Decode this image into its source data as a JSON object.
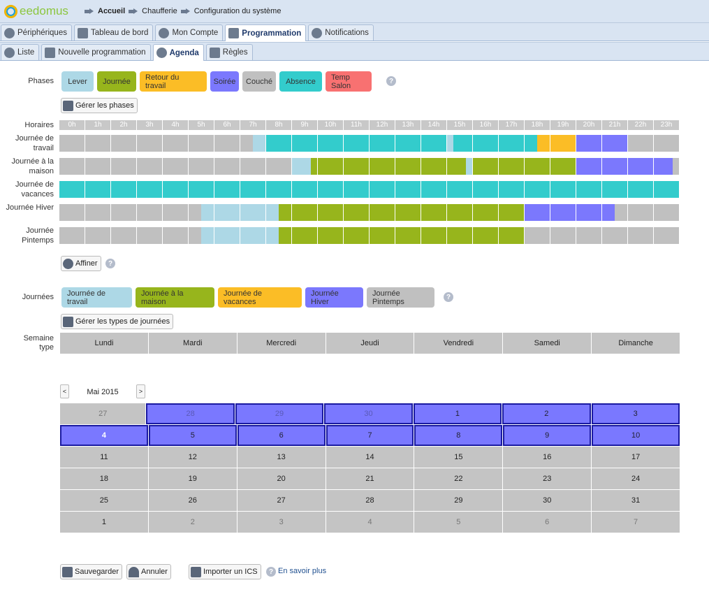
{
  "brand": "eedomus",
  "breadcrumb": [
    "Accueil",
    "Chaufferie",
    "Configuration du système"
  ],
  "main_tabs": [
    {
      "label": "Périphériques",
      "icon": "cube-icon"
    },
    {
      "label": "Tableau de bord",
      "icon": "gauge-icon"
    },
    {
      "label": "Mon Compte",
      "icon": "user-icon"
    },
    {
      "label": "Programmation",
      "icon": "magic-wand-icon",
      "active": true
    },
    {
      "label": "Notifications",
      "icon": "envelope-icon"
    }
  ],
  "sub_tabs": [
    {
      "label": "Liste",
      "icon": "magic-wand-icon"
    },
    {
      "label": "Nouvelle programmation",
      "icon": "plus-circle-icon"
    },
    {
      "label": "Agenda",
      "icon": "cube-icon",
      "active": true
    },
    {
      "label": "Règles",
      "icon": "hierarchy-icon"
    }
  ],
  "phases": {
    "label": "Phases",
    "manage_label": "Gérer les phases",
    "items": [
      {
        "name": "Lever",
        "color": "#add8e6"
      },
      {
        "name": "Journée",
        "color": "#97b51c"
      },
      {
        "name": "Retour du travail",
        "color": "#fbbd26"
      },
      {
        "name": "Soirée",
        "color": "#7b78fd"
      },
      {
        "name": "Couché",
        "color": "#c0c0c0"
      },
      {
        "name": "Absence",
        "color": "#33cccc"
      },
      {
        "name": "Temp Salon",
        "color": "#f87171"
      }
    ]
  },
  "schedule": {
    "hours_label": "Horaires",
    "hours": [
      "0h",
      "1h",
      "2h",
      "3h",
      "4h",
      "5h",
      "6h",
      "7h",
      "8h",
      "9h",
      "10h",
      "11h",
      "12h",
      "13h",
      "14h",
      "15h",
      "16h",
      "17h",
      "18h",
      "19h",
      "20h",
      "21h",
      "22h",
      "23h"
    ],
    "refine_label": "Affiner",
    "rows": [
      {
        "label": "Journée de travail",
        "segments": [
          [
            "Couché",
            0,
            7.5
          ],
          [
            "Lever",
            7.5,
            8
          ],
          [
            "Absence",
            8,
            15
          ],
          [
            "Lever",
            15,
            15.25
          ],
          [
            "Absence",
            15.25,
            18.5
          ],
          [
            "Retour du travail",
            18.5,
            20
          ],
          [
            "Soirée",
            20,
            22
          ],
          [
            "Couché",
            22,
            24
          ]
        ]
      },
      {
        "label": "Journée à la maison",
        "segments": [
          [
            "Couché",
            0,
            9
          ],
          [
            "Lever",
            9,
            9.75
          ],
          [
            "Journée",
            9.75,
            15.75
          ],
          [
            "Lever",
            15.75,
            16
          ],
          [
            "Journée",
            16,
            20
          ],
          [
            "Soirée",
            20,
            23.75
          ],
          [
            "Couché",
            23.75,
            24
          ]
        ]
      },
      {
        "label": "Journée de vacances",
        "segments": [
          [
            "Absence",
            0,
            24
          ]
        ]
      },
      {
        "label": "Journée Hiver",
        "segments": [
          [
            "Couché",
            0,
            5.5
          ],
          [
            "Lever",
            5.5,
            8.5
          ],
          [
            "Journée",
            8.5,
            18
          ],
          [
            "Soirée",
            18,
            21.5
          ],
          [
            "Couché",
            21.5,
            24
          ]
        ]
      },
      {
        "label": "Journée Pintemps",
        "segments": [
          [
            "Couché",
            0,
            5.5
          ],
          [
            "Lever",
            5.5,
            8.5
          ],
          [
            "Journée",
            8.5,
            18
          ],
          [
            "Couché",
            18,
            24
          ]
        ]
      }
    ]
  },
  "day_types": {
    "label": "Journées",
    "manage_label": "Gérer les types de journées",
    "items": [
      {
        "name": "Journée de travail",
        "color": "#add8e6"
      },
      {
        "name": "Journée à la maison",
        "color": "#97b51c"
      },
      {
        "name": "Journée de vacances",
        "color": "#fbbd26"
      },
      {
        "name": "Journée Hiver",
        "color": "#7b78fd"
      },
      {
        "name": "Journée Pintemps",
        "color": "#c0c0c0"
      }
    ]
  },
  "week": {
    "label": "Semaine type",
    "days": [
      "Lundi",
      "Mardi",
      "Mercredi",
      "Jeudi",
      "Vendredi",
      "Samedi",
      "Dimanche"
    ]
  },
  "calendar": {
    "month": "Mai 2015",
    "prev": "<",
    "next": ">",
    "weeks": [
      [
        {
          "d": "27",
          "o": 1
        },
        {
          "d": "28",
          "o": 1,
          "s": 1
        },
        {
          "d": "29",
          "o": 1,
          "s": 1
        },
        {
          "d": "30",
          "o": 1,
          "s": 1
        },
        {
          "d": "1",
          "s": 1
        },
        {
          "d": "2",
          "s": 1
        },
        {
          "d": "3",
          "s": 1
        }
      ],
      [
        {
          "d": "4",
          "s": 1,
          "t": 1
        },
        {
          "d": "5",
          "s": 1
        },
        {
          "d": "6",
          "s": 1
        },
        {
          "d": "7",
          "s": 1
        },
        {
          "d": "8",
          "s": 1
        },
        {
          "d": "9",
          "s": 1
        },
        {
          "d": "10",
          "s": 1
        }
      ],
      [
        {
          "d": "11"
        },
        {
          "d": "12"
        },
        {
          "d": "13"
        },
        {
          "d": "14"
        },
        {
          "d": "15"
        },
        {
          "d": "16"
        },
        {
          "d": "17"
        }
      ],
      [
        {
          "d": "18"
        },
        {
          "d": "19"
        },
        {
          "d": "20"
        },
        {
          "d": "21"
        },
        {
          "d": "22"
        },
        {
          "d": "23"
        },
        {
          "d": "24"
        }
      ],
      [
        {
          "d": "25"
        },
        {
          "d": "26"
        },
        {
          "d": "27"
        },
        {
          "d": "28"
        },
        {
          "d": "29"
        },
        {
          "d": "30"
        },
        {
          "d": "31"
        }
      ],
      [
        {
          "d": "1"
        },
        {
          "d": "2",
          "o": 1
        },
        {
          "d": "3",
          "o": 1
        },
        {
          "d": "4",
          "o": 1
        },
        {
          "d": "5",
          "o": 1
        },
        {
          "d": "6",
          "o": 1
        },
        {
          "d": "7",
          "o": 1
        }
      ]
    ]
  },
  "footer": {
    "save": "Sauvegarder",
    "cancel": "Annuler",
    "import": "Importer un ICS",
    "learn_more": "En savoir plus"
  }
}
